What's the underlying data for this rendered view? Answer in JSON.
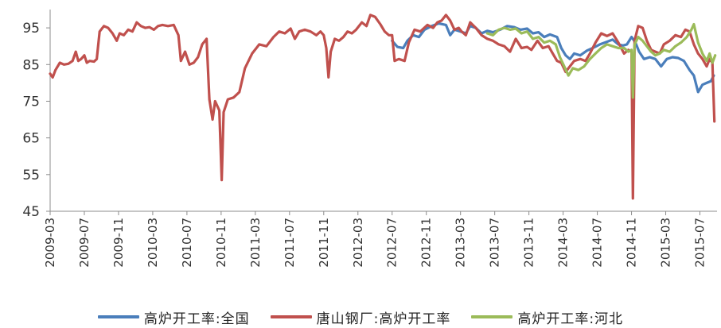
{
  "chart_data": {
    "type": "line",
    "title": "",
    "xlabel": "",
    "ylabel": "",
    "ylim": [
      45,
      100
    ],
    "yticks": [
      45,
      55,
      65,
      75,
      85,
      95
    ],
    "xlim": [
      "2009-03",
      "2015-09"
    ],
    "xtick_labels": [
      "2009-03",
      "2009-07",
      "2009-11",
      "2010-03",
      "2010-07",
      "2010-11",
      "2011-03",
      "2011-07",
      "2011-11",
      "2012-03",
      "2012-07",
      "2012-11",
      "2013-03",
      "2013-07",
      "2013-11",
      "2014-03",
      "2014-07",
      "2014-11",
      "2015-03",
      "2015-07"
    ],
    "grid": false,
    "legend_position": "bottom",
    "series": [
      {
        "name": "高炉开工率:全国",
        "color": "#4a7ebb",
        "points": [
          [
            "2012-07-01",
            91.5
          ],
          [
            "2012-07-20",
            89.8
          ],
          [
            "2012-08-10",
            89.5
          ],
          [
            "2012-08-25",
            91.5
          ],
          [
            "2012-09-15",
            93.0
          ],
          [
            "2012-10-05",
            92.5
          ],
          [
            "2012-10-25",
            94.5
          ],
          [
            "2012-11-20",
            95.5
          ],
          [
            "2012-12-15",
            96.2
          ],
          [
            "2013-01-10",
            95.8
          ],
          [
            "2013-01-25",
            93.0
          ],
          [
            "2013-02-10",
            94.5
          ],
          [
            "2013-03-01",
            94.0
          ],
          [
            "2013-03-20",
            93.5
          ],
          [
            "2013-04-05",
            95.5
          ],
          [
            "2013-04-25",
            95.0
          ],
          [
            "2013-05-15",
            93.5
          ],
          [
            "2013-06-05",
            94.2
          ],
          [
            "2013-06-25",
            93.8
          ],
          [
            "2013-07-20",
            94.5
          ],
          [
            "2013-08-15",
            95.5
          ],
          [
            "2013-09-10",
            95.2
          ],
          [
            "2013-10-01",
            94.5
          ],
          [
            "2013-10-25",
            94.8
          ],
          [
            "2013-11-15",
            93.5
          ],
          [
            "2013-12-05",
            93.8
          ],
          [
            "2013-12-25",
            92.5
          ],
          [
            "2014-01-15",
            93.2
          ],
          [
            "2014-02-10",
            92.5
          ],
          [
            "2014-02-25",
            89.5
          ],
          [
            "2014-03-10",
            87.5
          ],
          [
            "2014-03-25",
            86.5
          ],
          [
            "2014-04-10",
            88.0
          ],
          [
            "2014-05-01",
            87.5
          ],
          [
            "2014-05-25",
            88.8
          ],
          [
            "2014-06-15",
            89.5
          ],
          [
            "2014-07-10",
            90.5
          ],
          [
            "2014-08-05",
            91.2
          ],
          [
            "2014-08-25",
            91.8
          ],
          [
            "2014-09-15",
            90.5
          ],
          [
            "2014-10-01",
            90.2
          ],
          [
            "2014-10-15",
            90.5
          ],
          [
            "2014-11-01",
            92.5
          ],
          [
            "2014-11-15",
            91.0
          ],
          [
            "2014-11-28",
            88.5
          ],
          [
            "2014-12-15",
            86.5
          ],
          [
            "2015-01-05",
            87.0
          ],
          [
            "2015-01-25",
            86.5
          ],
          [
            "2015-02-15",
            84.5
          ],
          [
            "2015-03-05",
            86.5
          ],
          [
            "2015-03-25",
            87.0
          ],
          [
            "2015-04-15",
            86.8
          ],
          [
            "2015-05-05",
            86.0
          ],
          [
            "2015-05-25",
            83.5
          ],
          [
            "2015-06-10",
            82.0
          ],
          [
            "2015-06-25",
            77.5
          ],
          [
            "2015-07-10",
            79.5
          ],
          [
            "2015-07-25",
            80.0
          ],
          [
            "2015-08-10",
            80.5
          ],
          [
            "2015-08-20",
            82.0
          ]
        ]
      },
      {
        "name": "唐山钢厂:高炉开工率",
        "color": "#c0504d",
        "points": [
          [
            "2009-03-01",
            82.5
          ],
          [
            "2009-03-10",
            81.5
          ],
          [
            "2009-03-20",
            83.5
          ],
          [
            "2009-04-05",
            85.5
          ],
          [
            "2009-04-20",
            85.0
          ],
          [
            "2009-05-05",
            85.2
          ],
          [
            "2009-05-20",
            86.0
          ],
          [
            "2009-06-01",
            88.5
          ],
          [
            "2009-06-10",
            86.0
          ],
          [
            "2009-06-20",
            86.5
          ],
          [
            "2009-07-01",
            87.5
          ],
          [
            "2009-07-10",
            85.5
          ],
          [
            "2009-07-20",
            86.0
          ],
          [
            "2009-08-05",
            85.8
          ],
          [
            "2009-08-15",
            86.5
          ],
          [
            "2009-08-25",
            94.0
          ],
          [
            "2009-09-10",
            95.5
          ],
          [
            "2009-09-25",
            95.0
          ],
          [
            "2009-10-10",
            93.5
          ],
          [
            "2009-10-25",
            91.5
          ],
          [
            "2009-11-05",
            93.5
          ],
          [
            "2009-11-20",
            93.0
          ],
          [
            "2009-12-05",
            94.5
          ],
          [
            "2009-12-20",
            94.0
          ],
          [
            "2010-01-05",
            96.5
          ],
          [
            "2010-01-20",
            95.5
          ],
          [
            "2010-02-05",
            95.0
          ],
          [
            "2010-02-20",
            95.2
          ],
          [
            "2010-03-05",
            94.5
          ],
          [
            "2010-03-20",
            95.5
          ],
          [
            "2010-04-05",
            95.8
          ],
          [
            "2010-04-25",
            95.5
          ],
          [
            "2010-05-15",
            95.8
          ],
          [
            "2010-06-01",
            93.0
          ],
          [
            "2010-06-10",
            86.0
          ],
          [
            "2010-06-25",
            88.5
          ],
          [
            "2010-07-10",
            85.0
          ],
          [
            "2010-07-25",
            85.5
          ],
          [
            "2010-08-10",
            87.0
          ],
          [
            "2010-08-25",
            90.5
          ],
          [
            "2010-09-10",
            92.0
          ],
          [
            "2010-09-20",
            75.5
          ],
          [
            "2010-10-01",
            70.0
          ],
          [
            "2010-10-10",
            75.0
          ],
          [
            "2010-10-25",
            72.5
          ],
          [
            "2010-11-03",
            53.5
          ],
          [
            "2010-11-10",
            72.0
          ],
          [
            "2010-11-25",
            75.5
          ],
          [
            "2010-12-15",
            76.0
          ],
          [
            "2011-01-05",
            77.5
          ],
          [
            "2011-01-25",
            84.0
          ],
          [
            "2011-02-20",
            88.0
          ],
          [
            "2011-03-15",
            90.5
          ],
          [
            "2011-04-10",
            90.0
          ],
          [
            "2011-05-05",
            92.5
          ],
          [
            "2011-05-25",
            94.0
          ],
          [
            "2011-06-15",
            93.5
          ],
          [
            "2011-07-05",
            94.8
          ],
          [
            "2011-07-20",
            92.0
          ],
          [
            "2011-08-05",
            94.0
          ],
          [
            "2011-08-25",
            94.5
          ],
          [
            "2011-09-15",
            94.0
          ],
          [
            "2011-10-05",
            93.0
          ],
          [
            "2011-10-20",
            94.0
          ],
          [
            "2011-11-01",
            93.0
          ],
          [
            "2011-11-10",
            89.5
          ],
          [
            "2011-11-18",
            81.5
          ],
          [
            "2011-11-26",
            88.5
          ],
          [
            "2011-12-10",
            92.0
          ],
          [
            "2011-12-25",
            91.5
          ],
          [
            "2012-01-10",
            92.5
          ],
          [
            "2012-01-25",
            94.0
          ],
          [
            "2012-02-10",
            93.5
          ],
          [
            "2012-02-25",
            94.5
          ],
          [
            "2012-03-15",
            96.5
          ],
          [
            "2012-04-01",
            95.5
          ],
          [
            "2012-04-15",
            98.5
          ],
          [
            "2012-05-01",
            98.0
          ],
          [
            "2012-05-20",
            96.0
          ],
          [
            "2012-06-05",
            94.0
          ],
          [
            "2012-06-20",
            93.0
          ],
          [
            "2012-07-01",
            93.0
          ],
          [
            "2012-07-10",
            86.0
          ],
          [
            "2012-07-25",
            86.5
          ],
          [
            "2012-08-15",
            86.0
          ],
          [
            "2012-08-30",
            91.0
          ],
          [
            "2012-09-20",
            94.5
          ],
          [
            "2012-10-10",
            94.0
          ],
          [
            "2012-11-05",
            95.8
          ],
          [
            "2012-11-25",
            95.0
          ],
          [
            "2012-12-10",
            96.5
          ],
          [
            "2012-12-25",
            97.0
          ],
          [
            "2013-01-10",
            98.5
          ],
          [
            "2013-01-25",
            97.0
          ],
          [
            "2013-02-10",
            94.5
          ],
          [
            "2013-02-25",
            95.0
          ],
          [
            "2013-03-05",
            94.0
          ],
          [
            "2013-03-20",
            93.0
          ],
          [
            "2013-04-05",
            96.5
          ],
          [
            "2013-04-25",
            95.0
          ],
          [
            "2013-05-15",
            93.0
          ],
          [
            "2013-06-05",
            92.0
          ],
          [
            "2013-06-25",
            91.5
          ],
          [
            "2013-07-15",
            90.5
          ],
          [
            "2013-08-05",
            90.0
          ],
          [
            "2013-08-25",
            88.5
          ],
          [
            "2013-09-15",
            92.0
          ],
          [
            "2013-10-05",
            89.5
          ],
          [
            "2013-10-25",
            89.8
          ],
          [
            "2013-11-10",
            89.0
          ],
          [
            "2013-12-01",
            91.5
          ],
          [
            "2013-12-20",
            89.5
          ],
          [
            "2014-01-10",
            90.0
          ],
          [
            "2014-01-25",
            88.0
          ],
          [
            "2014-02-10",
            86.0
          ],
          [
            "2014-02-25",
            85.5
          ],
          [
            "2014-03-10",
            83.0
          ],
          [
            "2014-03-25",
            84.5
          ],
          [
            "2014-04-10",
            86.0
          ],
          [
            "2014-05-01",
            86.5
          ],
          [
            "2014-05-20",
            86.0
          ],
          [
            "2014-06-05",
            88.0
          ],
          [
            "2014-06-25",
            91.0
          ],
          [
            "2014-07-15",
            93.5
          ],
          [
            "2014-08-05",
            92.8
          ],
          [
            "2014-08-25",
            93.5
          ],
          [
            "2014-09-15",
            91.0
          ],
          [
            "2014-10-05",
            88.0
          ],
          [
            "2014-10-20",
            89.0
          ],
          [
            "2014-11-01",
            88.5
          ],
          [
            "2014-11-06",
            48.5
          ],
          [
            "2014-11-12",
            91.5
          ],
          [
            "2014-11-25",
            95.5
          ],
          [
            "2014-12-10",
            95.0
          ],
          [
            "2014-12-25",
            91.5
          ],
          [
            "2015-01-10",
            89.0
          ],
          [
            "2015-01-25",
            88.5
          ],
          [
            "2015-02-10",
            88.0
          ],
          [
            "2015-02-25",
            90.5
          ],
          [
            "2015-03-15",
            91.5
          ],
          [
            "2015-04-05",
            93.0
          ],
          [
            "2015-04-25",
            92.5
          ],
          [
            "2015-05-10",
            94.5
          ],
          [
            "2015-05-25",
            94.0
          ],
          [
            "2015-06-10",
            90.5
          ],
          [
            "2015-06-25",
            88.0
          ],
          [
            "2015-07-10",
            86.5
          ],
          [
            "2015-07-25",
            84.5
          ],
          [
            "2015-08-05",
            86.5
          ],
          [
            "2015-08-15",
            85.5
          ],
          [
            "2015-08-22",
            69.5
          ]
        ]
      },
      {
        "name": "高炉开工率:河北",
        "color": "#9bbb59",
        "points": [
          [
            "2013-06-05",
            93.5
          ],
          [
            "2013-06-25",
            93.0
          ],
          [
            "2013-07-15",
            94.5
          ],
          [
            "2013-08-05",
            95.0
          ],
          [
            "2013-08-25",
            94.5
          ],
          [
            "2013-09-15",
            94.8
          ],
          [
            "2013-10-05",
            93.5
          ],
          [
            "2013-10-25",
            94.0
          ],
          [
            "2013-11-15",
            92.0
          ],
          [
            "2013-12-05",
            92.5
          ],
          [
            "2013-12-25",
            91.0
          ],
          [
            "2014-01-15",
            91.5
          ],
          [
            "2014-02-05",
            90.5
          ],
          [
            "2014-02-20",
            87.0
          ],
          [
            "2014-03-05",
            84.5
          ],
          [
            "2014-03-20",
            82.0
          ],
          [
            "2014-04-05",
            84.0
          ],
          [
            "2014-04-25",
            83.5
          ],
          [
            "2014-05-15",
            84.5
          ],
          [
            "2014-06-05",
            86.5
          ],
          [
            "2014-06-25",
            88.0
          ],
          [
            "2014-07-15",
            89.5
          ],
          [
            "2014-08-05",
            90.5
          ],
          [
            "2014-08-25",
            90.0
          ],
          [
            "2014-09-15",
            89.5
          ],
          [
            "2014-10-05",
            89.5
          ],
          [
            "2014-10-20",
            88.5
          ],
          [
            "2014-11-01",
            89.0
          ],
          [
            "2014-11-06",
            76.0
          ],
          [
            "2014-11-12",
            90.5
          ],
          [
            "2014-11-25",
            92.5
          ],
          [
            "2014-12-10",
            91.5
          ],
          [
            "2014-12-25",
            90.0
          ],
          [
            "2015-01-10",
            88.5
          ],
          [
            "2015-01-25",
            87.5
          ],
          [
            "2015-02-10",
            88.0
          ],
          [
            "2015-02-25",
            89.0
          ],
          [
            "2015-03-15",
            88.5
          ],
          [
            "2015-04-05",
            90.0
          ],
          [
            "2015-04-25",
            91.0
          ],
          [
            "2015-05-15",
            92.5
          ],
          [
            "2015-06-01",
            94.5
          ],
          [
            "2015-06-10",
            96.0
          ],
          [
            "2015-06-25",
            91.0
          ],
          [
            "2015-07-10",
            88.0
          ],
          [
            "2015-07-25",
            86.0
          ],
          [
            "2015-08-05",
            88.0
          ],
          [
            "2015-08-15",
            85.5
          ],
          [
            "2015-08-25",
            87.5
          ]
        ]
      }
    ]
  }
}
